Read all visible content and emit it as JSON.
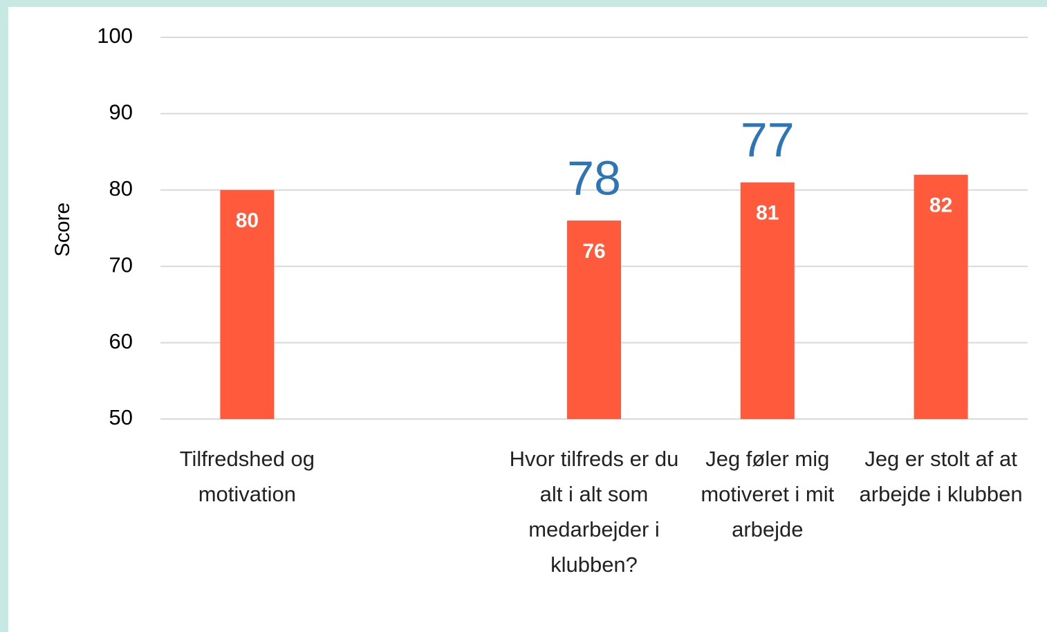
{
  "chart_data": {
    "type": "bar",
    "y_label": "Score",
    "categories": [
      "Tilfredshed og motivation",
      null,
      "Hvor tilfreds er du alt i alt som medarbejder i klubben?",
      "Jeg føler mig motiveret i mit arbejde",
      "Jeg er stolt af at arbejde i klubben"
    ],
    "values": [
      80,
      null,
      76,
      81,
      82
    ],
    "annotations": [
      null,
      null,
      "78",
      "77",
      null
    ],
    "color": "#ff5a3c",
    "annotation_color": "#2e75b6",
    "ylim": [
      50,
      100
    ],
    "yticks": [
      50,
      60,
      70,
      80,
      90,
      100
    ],
    "grid": true
  }
}
